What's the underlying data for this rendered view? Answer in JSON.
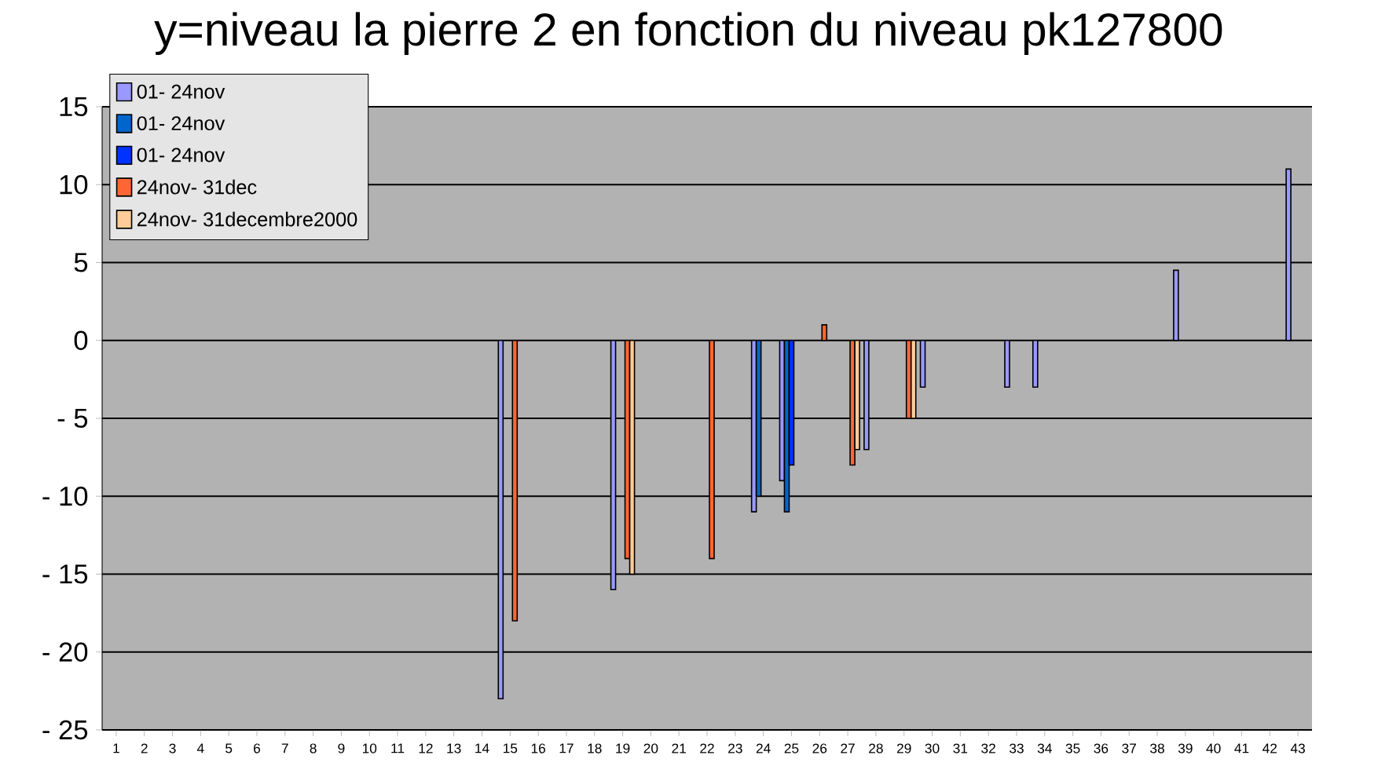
{
  "chart_data": {
    "type": "bar",
    "title": "y=niveau la pierre 2 en fonction du niveau pk127800",
    "categories": [
      "1",
      "2",
      "3",
      "4",
      "5",
      "6",
      "7",
      "8",
      "9",
      "10",
      "11",
      "12",
      "13",
      "14",
      "15",
      "16",
      "17",
      "18",
      "19",
      "20",
      "21",
      "22",
      "23",
      "24",
      "25",
      "26",
      "27",
      "28",
      "29",
      "30",
      "31",
      "32",
      "33",
      "34",
      "35",
      "36",
      "37",
      "38",
      "39",
      "40",
      "41",
      "42",
      "43"
    ],
    "series": [
      {
        "name": "01- 24nov",
        "color": "#9999ff",
        "values": [
          null,
          null,
          null,
          null,
          null,
          null,
          null,
          null,
          null,
          null,
          null,
          null,
          null,
          null,
          -23,
          null,
          null,
          null,
          -16,
          null,
          null,
          null,
          null,
          -11,
          -9,
          null,
          null,
          -7,
          null,
          -3,
          null,
          null,
          -3,
          -3,
          null,
          null,
          null,
          null,
          4.5,
          null,
          null,
          null,
          11
        ]
      },
      {
        "name": "01- 24nov",
        "color": "#0066cc",
        "values": [
          null,
          null,
          null,
          null,
          null,
          null,
          null,
          null,
          null,
          null,
          null,
          null,
          null,
          null,
          null,
          null,
          null,
          null,
          null,
          null,
          null,
          null,
          null,
          -10,
          -11,
          null,
          null,
          null,
          null,
          null,
          null,
          null,
          null,
          null,
          null,
          null,
          null,
          null,
          null,
          null,
          null,
          null,
          null
        ]
      },
      {
        "name": "01- 24nov",
        "color": "#0033ff",
        "values": [
          null,
          null,
          null,
          null,
          null,
          null,
          null,
          null,
          null,
          null,
          null,
          null,
          null,
          null,
          null,
          null,
          null,
          null,
          null,
          null,
          null,
          null,
          null,
          null,
          -8,
          null,
          null,
          null,
          null,
          null,
          null,
          null,
          null,
          null,
          null,
          null,
          null,
          null,
          null,
          null,
          null,
          null,
          null
        ]
      },
      {
        "name": "24nov- 31dec",
        "color": "#ff6633",
        "values": [
          null,
          null,
          null,
          null,
          null,
          null,
          null,
          null,
          null,
          null,
          null,
          null,
          null,
          null,
          -18,
          null,
          null,
          null,
          -14,
          null,
          null,
          -14,
          null,
          null,
          null,
          1,
          -8,
          null,
          -5,
          null,
          null,
          null,
          null,
          null,
          null,
          null,
          null,
          null,
          null,
          null,
          null,
          null,
          null
        ]
      },
      {
        "name": "24nov- 31decembre2000",
        "color": "#ffcc99",
        "values": [
          null,
          null,
          null,
          null,
          null,
          null,
          null,
          null,
          null,
          null,
          null,
          null,
          null,
          null,
          null,
          null,
          null,
          null,
          -15,
          null,
          null,
          null,
          null,
          null,
          null,
          null,
          -7,
          null,
          -5,
          null,
          null,
          null,
          null,
          null,
          null,
          null,
          null,
          null,
          null,
          null,
          null,
          null,
          null
        ]
      }
    ],
    "ylim": [
      -25,
      15
    ],
    "yticks": [
      {
        "value": -25,
        "label": "- 25"
      },
      {
        "value": -20,
        "label": "- 20"
      },
      {
        "value": -15,
        "label": "- 15"
      },
      {
        "value": -10,
        "label": "- 10"
      },
      {
        "value": -5,
        "label": "- 5"
      },
      0,
      5,
      10,
      15
    ],
    "grid": "y",
    "legend": "top left"
  }
}
